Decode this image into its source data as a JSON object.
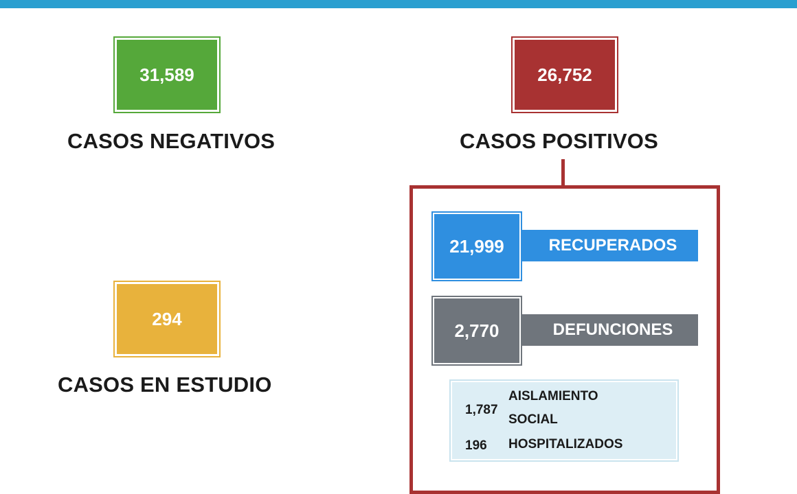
{
  "colors": {
    "top_bar": "#2a9fd0",
    "negative": "#55a83a",
    "positive": "#a83232",
    "study": "#e8b23c",
    "recovered": "#2f8fe0",
    "deaths": "#6f757c",
    "detail_bg": "#ddeef5"
  },
  "negative": {
    "value": "31,589",
    "label": "CASOS NEGATIVOS"
  },
  "positive": {
    "value": "26,752",
    "label": "CASOS POSITIVOS"
  },
  "study": {
    "value": "294",
    "label": "CASOS EN ESTUDIO"
  },
  "recovered": {
    "value": "21,999",
    "label": "RECUPERADOS"
  },
  "deaths": {
    "value": "2,770",
    "label": "DEFUNCIONES"
  },
  "isolation": {
    "value": "1,787",
    "label_line1": "AISLAMIENTO",
    "label_line2": "SOCIAL"
  },
  "hospitalized": {
    "value": "196",
    "label": "HOSPITALIZADOS"
  }
}
